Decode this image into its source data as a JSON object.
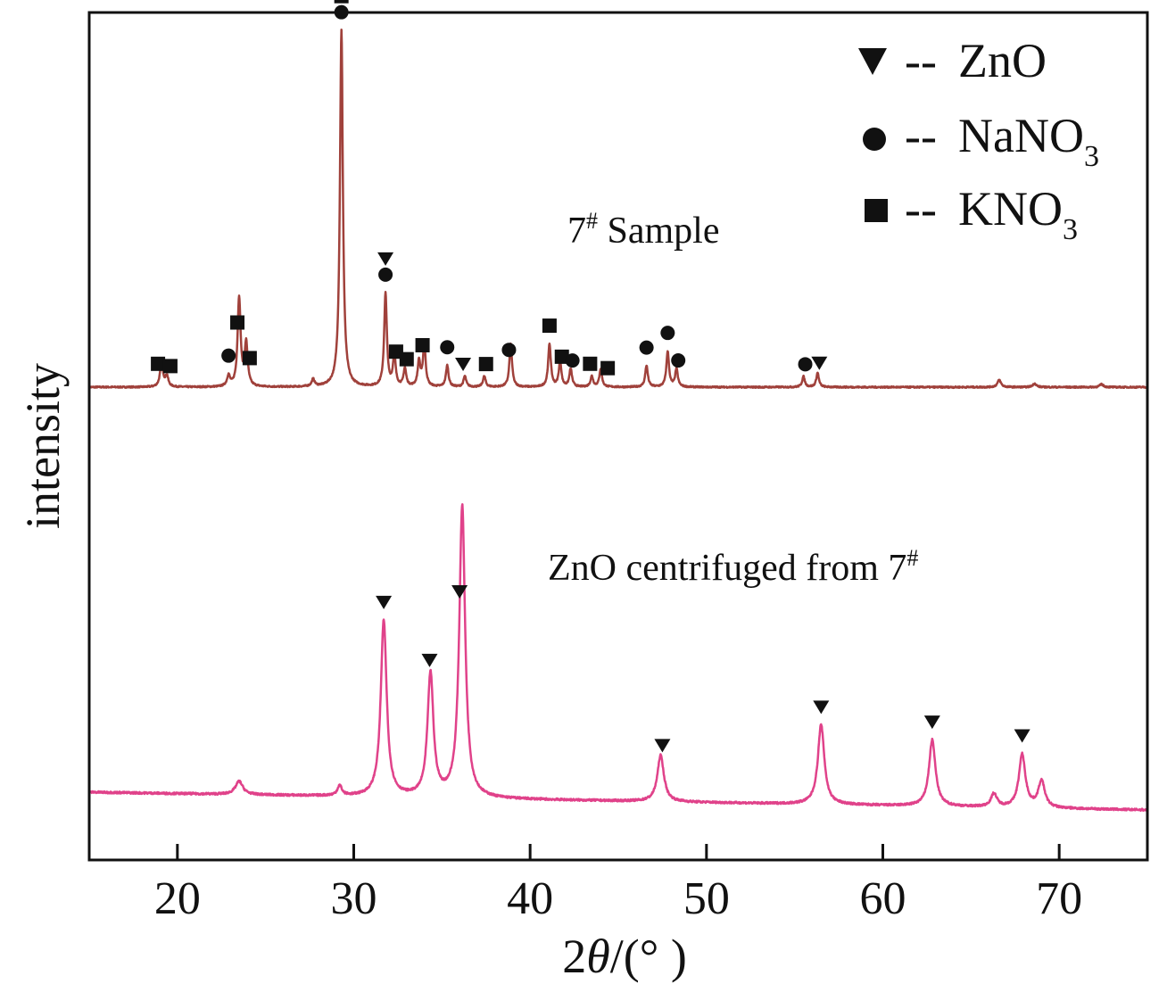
{
  "chart_data": {
    "type": "line",
    "title": "",
    "xlabel": {
      "prefix": "2",
      "symbol": "θ",
      "unit": "/(° )"
    },
    "ylabel": "intensity",
    "xlim": [
      15,
      75
    ],
    "xticks": [
      20,
      30,
      40,
      50,
      60,
      70
    ],
    "yticks": [],
    "grid": false,
    "legend": {
      "position": "top-right",
      "entries": [
        {
          "marker": "triangle-down",
          "dash": "--",
          "name": "ZnO",
          "sub": ""
        },
        {
          "marker": "circle",
          "dash": "--",
          "name": "NaNO",
          "sub": "3"
        },
        {
          "marker": "square",
          "dash": "--",
          "name": "KNO",
          "sub": "3"
        }
      ]
    },
    "annotations": [
      {
        "series": "7# Sample",
        "base": "7",
        "sup": "#",
        "text": " Sample"
      },
      {
        "series": "ZnO centrifuged from 7#",
        "base": "ZnO centrifuged from 7",
        "sup": "#",
        "text": ""
      }
    ],
    "series": [
      {
        "name": "7# Sample",
        "color": "#a0413b",
        "baseline": 0.0,
        "noise": 0.004,
        "peaks": [
          {
            "x": 19.1,
            "h": 0.07,
            "w": 0.1
          },
          {
            "x": 19.4,
            "h": 0.03,
            "w": 0.1
          },
          {
            "x": 22.9,
            "h": 0.03,
            "w": 0.1
          },
          {
            "x": 23.5,
            "h": 0.25,
            "w": 0.1
          },
          {
            "x": 23.9,
            "h": 0.12,
            "w": 0.1
          },
          {
            "x": 27.7,
            "h": 0.02,
            "w": 0.1
          },
          {
            "x": 29.3,
            "h": 1.0,
            "w": 0.1
          },
          {
            "x": 31.8,
            "h": 0.26,
            "w": 0.09
          },
          {
            "x": 32.3,
            "h": 0.09,
            "w": 0.09
          },
          {
            "x": 32.9,
            "h": 0.05,
            "w": 0.09
          },
          {
            "x": 33.7,
            "h": 0.07,
            "w": 0.09
          },
          {
            "x": 34.0,
            "h": 0.12,
            "w": 0.09
          },
          {
            "x": 35.3,
            "h": 0.06,
            "w": 0.09
          },
          {
            "x": 36.3,
            "h": 0.03,
            "w": 0.09
          },
          {
            "x": 37.4,
            "h": 0.03,
            "w": 0.09
          },
          {
            "x": 38.9,
            "h": 0.12,
            "w": 0.09
          },
          {
            "x": 41.1,
            "h": 0.12,
            "w": 0.09
          },
          {
            "x": 41.7,
            "h": 0.07,
            "w": 0.09
          },
          {
            "x": 42.3,
            "h": 0.05,
            "w": 0.09
          },
          {
            "x": 43.5,
            "h": 0.03,
            "w": 0.09
          },
          {
            "x": 44.0,
            "h": 0.05,
            "w": 0.09
          },
          {
            "x": 46.6,
            "h": 0.06,
            "w": 0.09
          },
          {
            "x": 47.8,
            "h": 0.1,
            "w": 0.09
          },
          {
            "x": 48.3,
            "h": 0.05,
            "w": 0.09
          },
          {
            "x": 55.5,
            "h": 0.03,
            "w": 0.09
          },
          {
            "x": 56.3,
            "h": 0.04,
            "w": 0.09
          },
          {
            "x": 66.6,
            "h": 0.02,
            "w": 0.12
          },
          {
            "x": 68.6,
            "h": 0.01,
            "w": 0.12
          },
          {
            "x": 72.4,
            "h": 0.008,
            "w": 0.12
          }
        ]
      },
      {
        "name": "ZnO centrifuged from 7#",
        "color": "#e0428a",
        "baseline": 0.0,
        "noise": 0.006,
        "peaks": [
          {
            "x": 23.5,
            "h": 0.04,
            "w": 0.25
          },
          {
            "x": 29.2,
            "h": 0.03,
            "w": 0.15
          },
          {
            "x": 31.7,
            "h": 0.53,
            "w": 0.2
          },
          {
            "x": 34.35,
            "h": 0.37,
            "w": 0.2
          },
          {
            "x": 36.15,
            "h": 0.88,
            "w": 0.2
          },
          {
            "x": 47.4,
            "h": 0.14,
            "w": 0.22
          },
          {
            "x": 56.5,
            "h": 0.24,
            "w": 0.22
          },
          {
            "x": 62.8,
            "h": 0.2,
            "w": 0.22
          },
          {
            "x": 66.3,
            "h": 0.04,
            "w": 0.2
          },
          {
            "x": 67.9,
            "h": 0.16,
            "w": 0.22
          },
          {
            "x": 69.0,
            "h": 0.08,
            "w": 0.22
          }
        ]
      }
    ],
    "markers": [
      {
        "series": "7# Sample",
        "x": 29.3,
        "stack": [
          "square",
          "circle"
        ]
      },
      {
        "series": "7# Sample",
        "x": 31.8,
        "stack": [
          "triangle-down",
          "circle"
        ]
      },
      {
        "series": "7# Sample",
        "x": 18.9,
        "stack": [
          "square"
        ]
      },
      {
        "series": "7# Sample",
        "x": 19.6,
        "stack": [
          "square"
        ]
      },
      {
        "series": "7# Sample",
        "x": 22.9,
        "stack": [
          "circle"
        ]
      },
      {
        "series": "7# Sample",
        "x": 23.4,
        "stack": [
          "square"
        ]
      },
      {
        "series": "7# Sample",
        "x": 24.1,
        "stack": [
          "square"
        ]
      },
      {
        "series": "7# Sample",
        "x": 32.4,
        "stack": [
          "square"
        ]
      },
      {
        "series": "7# Sample",
        "x": 33.0,
        "stack": [
          "square"
        ]
      },
      {
        "series": "7# Sample",
        "x": 33.9,
        "stack": [
          "square"
        ]
      },
      {
        "series": "7# Sample",
        "x": 35.3,
        "stack": [
          "circle"
        ]
      },
      {
        "series": "7# Sample",
        "x": 36.2,
        "stack": [
          "triangle-down"
        ]
      },
      {
        "series": "7# Sample",
        "x": 37.5,
        "stack": [
          "square"
        ]
      },
      {
        "series": "7# Sample",
        "x": 38.8,
        "stack": [
          "circle"
        ]
      },
      {
        "series": "7# Sample",
        "x": 41.1,
        "stack": [
          "square"
        ]
      },
      {
        "series": "7# Sample",
        "x": 41.8,
        "stack": [
          "square"
        ]
      },
      {
        "series": "7# Sample",
        "x": 42.4,
        "stack": [
          "circle"
        ]
      },
      {
        "series": "7# Sample",
        "x": 43.4,
        "stack": [
          "square"
        ]
      },
      {
        "series": "7# Sample",
        "x": 44.4,
        "stack": [
          "square"
        ]
      },
      {
        "series": "7# Sample",
        "x": 46.6,
        "stack": [
          "circle"
        ]
      },
      {
        "series": "7# Sample",
        "x": 47.8,
        "stack": [
          "circle"
        ]
      },
      {
        "series": "7# Sample",
        "x": 48.4,
        "stack": [
          "circle"
        ]
      },
      {
        "series": "7# Sample",
        "x": 55.6,
        "stack": [
          "circle"
        ]
      },
      {
        "series": "7# Sample",
        "x": 56.4,
        "stack": [
          "triangle-down"
        ]
      },
      {
        "series": "ZnO centrifuged from 7#",
        "x": 31.7,
        "stack": [
          "triangle-down"
        ]
      },
      {
        "series": "ZnO centrifuged from 7#",
        "x": 34.3,
        "stack": [
          "triangle-down"
        ]
      },
      {
        "series": "ZnO centrifuged from 7#",
        "x": 36.0,
        "stack": [
          "triangle-down"
        ]
      },
      {
        "series": "ZnO centrifuged from 7#",
        "x": 47.5,
        "stack": [
          "triangle-down"
        ]
      },
      {
        "series": "ZnO centrifuged from 7#",
        "x": 56.5,
        "stack": [
          "triangle-down"
        ]
      },
      {
        "series": "ZnO centrifuged from 7#",
        "x": 62.8,
        "stack": [
          "triangle-down"
        ]
      },
      {
        "series": "ZnO centrifuged from 7#",
        "x": 67.9,
        "stack": [
          "triangle-down"
        ]
      }
    ]
  }
}
